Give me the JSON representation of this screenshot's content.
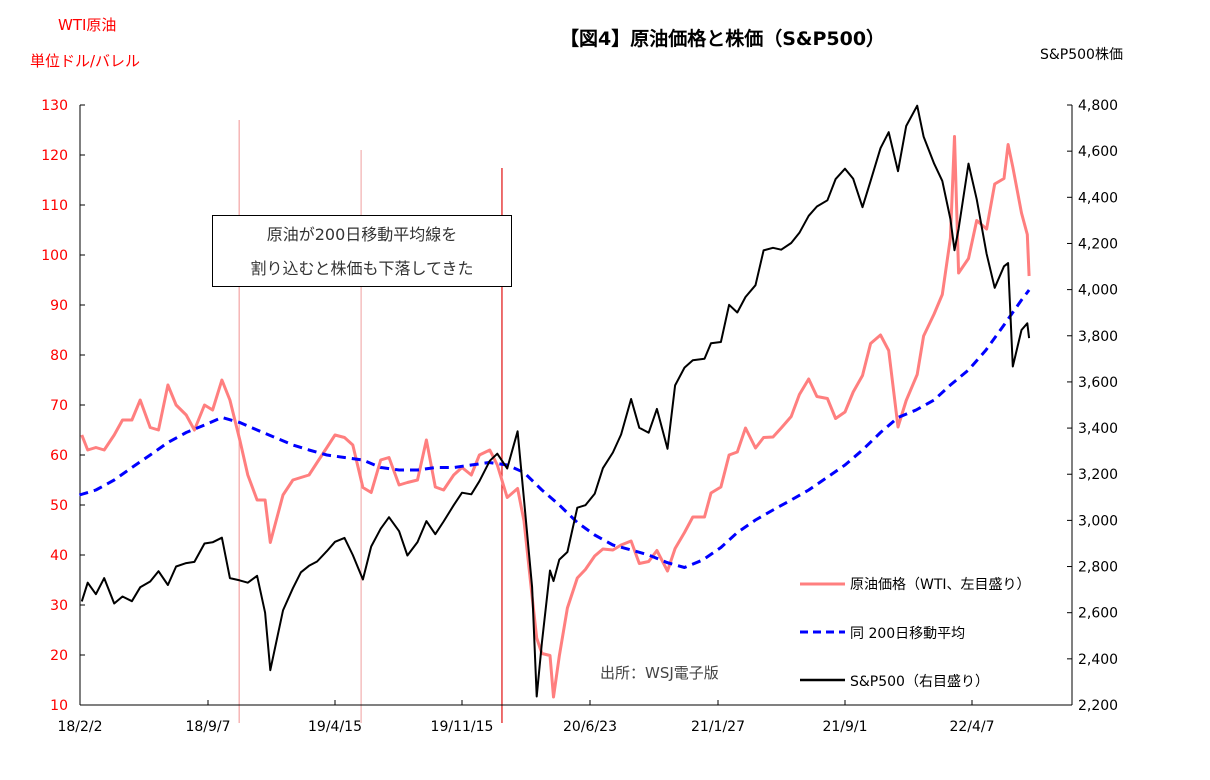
{
  "chart_data": {
    "type": "line",
    "title": "【図4】原油価格と株価（S&P500）",
    "y_left_label": [
      "WTI原油",
      "単位ドル/バレル"
    ],
    "y_right_label": "S&P500株価",
    "y_left_range": [
      10,
      130
    ],
    "y_right_range": [
      2200,
      4800
    ],
    "y_left_ticks": [
      "10",
      "20",
      "30",
      "40",
      "50",
      "60",
      "70",
      "80",
      "90",
      "100",
      "110",
      "120",
      "130"
    ],
    "y_right_ticks": [
      "2,200",
      "2,400",
      "2,600",
      "2,800",
      "3,000",
      "3,200",
      "3,400",
      "3,600",
      "3,800",
      "4,000",
      "4,200",
      "4,400",
      "4,600",
      "4,800"
    ],
    "x_ticks": [
      {
        "label": "18/2/2",
        "date": "2018-02-02"
      },
      {
        "label": "18/9/7",
        "date": "2018-09-07"
      },
      {
        "label": "19/4/15",
        "date": "2019-04-15"
      },
      {
        "label": "19/11/15",
        "date": "2019-11-15"
      },
      {
        "label": "20/6/23",
        "date": "2020-06-23"
      },
      {
        "label": "21/1/27",
        "date": "2021-01-27"
      },
      {
        "label": "21/9/1",
        "date": "2021-09-01"
      },
      {
        "label": "22/4/7",
        "date": "2022-04-07"
      }
    ],
    "grid": false,
    "legend_position": "bottom-right",
    "annotation": [
      "原油が200日移動平均線を",
      "割り込むと株価も下落してきた"
    ],
    "source": "出所：WSJ電子版",
    "vlines": [
      {
        "date": "2018-10-31",
        "color": "#f4a3a3"
      },
      {
        "date": "2019-05-29",
        "color": "#f2b0b0"
      },
      {
        "date": "2020-01-23",
        "color": "#e01010"
      }
    ],
    "x": [
      "2018-02-05",
      "2018-02-15",
      "2018-03-01",
      "2018-03-15",
      "2018-04-01",
      "2018-04-15",
      "2018-05-01",
      "2018-05-15",
      "2018-06-01",
      "2018-06-15",
      "2018-07-01",
      "2018-07-15",
      "2018-08-01",
      "2018-08-15",
      "2018-09-01",
      "2018-09-15",
      "2018-10-01",
      "2018-10-15",
      "2018-11-01",
      "2018-11-15",
      "2018-12-01",
      "2018-12-15",
      "2018-12-24",
      "2019-01-15",
      "2019-02-01",
      "2019-02-15",
      "2019-03-01",
      "2019-03-15",
      "2019-04-01",
      "2019-04-15",
      "2019-05-01",
      "2019-05-15",
      "2019-06-01",
      "2019-06-15",
      "2019-07-01",
      "2019-07-15",
      "2019-08-01",
      "2019-08-15",
      "2019-09-01",
      "2019-09-16",
      "2019-10-01",
      "2019-10-15",
      "2019-11-01",
      "2019-11-15",
      "2019-12-01",
      "2019-12-15",
      "2020-01-02",
      "2020-01-15",
      "2020-02-01",
      "2020-02-19",
      "2020-03-01",
      "2020-03-15",
      "2020-03-23",
      "2020-04-01",
      "2020-04-15",
      "2020-04-21",
      "2020-05-01",
      "2020-05-15",
      "2020-06-01",
      "2020-06-15",
      "2020-07-01",
      "2020-07-15",
      "2020-08-01",
      "2020-08-15",
      "2020-09-01",
      "2020-09-15",
      "2020-10-01",
      "2020-10-15",
      "2020-11-02",
      "2020-11-15",
      "2020-12-01",
      "2020-12-15",
      "2021-01-04",
      "2021-01-15",
      "2021-02-01",
      "2021-02-15",
      "2021-03-01",
      "2021-03-15",
      "2021-04-01",
      "2021-04-15",
      "2021-05-01",
      "2021-05-15",
      "2021-06-01",
      "2021-06-15",
      "2021-07-01",
      "2021-07-15",
      "2021-08-02",
      "2021-08-16",
      "2021-09-01",
      "2021-09-15",
      "2021-10-01",
      "2021-10-15",
      "2021-11-01",
      "2021-11-15",
      "2021-12-01",
      "2021-12-15",
      "2022-01-03",
      "2022-01-14",
      "2022-02-01",
      "2022-02-15",
      "2022-03-01",
      "2022-03-08",
      "2022-03-15",
      "2022-04-01",
      "2022-04-15",
      "2022-05-02",
      "2022-05-16",
      "2022-06-01",
      "2022-06-08",
      "2022-06-16",
      "2022-07-01",
      "2022-07-11",
      "2022-07-14"
    ],
    "series": [
      {
        "name": "原油価格（WTI、左目盛り）",
        "axis": "left",
        "color": "#ff7f7f",
        "style": "solid",
        "values": [
          64,
          61,
          61.5,
          61,
          64,
          67,
          67,
          71,
          65.5,
          65,
          74,
          70,
          68,
          65,
          70,
          69,
          75,
          71,
          63,
          56,
          51,
          51,
          42.5,
          52,
          55,
          55.5,
          56,
          58.5,
          61.5,
          64,
          63.5,
          62,
          53.5,
          52.5,
          59,
          59.5,
          54,
          54.5,
          55,
          63,
          53.6,
          53,
          56,
          57.5,
          56,
          60,
          61,
          58,
          51.5,
          53.3,
          46.8,
          31.7,
          23.4,
          20.3,
          19.9,
          11.6,
          19.8,
          29.4,
          35.4,
          37.1,
          39.8,
          41.2,
          41,
          42,
          42.8,
          38.3,
          38.7,
          40.9,
          36.8,
          41.3,
          44.5,
          47.6,
          47.6,
          52.4,
          53.6,
          60,
          60.6,
          65.4,
          61.4,
          63.5,
          63.6,
          65.4,
          67.7,
          72.1,
          75.2,
          71.7,
          71.3,
          67.3,
          68.6,
          72.6,
          75.9,
          82.3,
          84,
          80.9,
          65.6,
          70.9,
          76.1,
          83.8,
          88.2,
          92.1,
          103.4,
          123.7,
          96.4,
          99.3,
          106.9,
          105.2,
          114.2,
          115.3,
          122.1,
          117.6,
          108.4,
          104.1,
          95.8
        ]
      },
      {
        "name": "S&P500（右目盛り）",
        "axis": "right",
        "color": "#000000",
        "style": "solid",
        "values": [
          2649,
          2730,
          2680,
          2750,
          2640,
          2670,
          2650,
          2710,
          2735,
          2780,
          2720,
          2800,
          2815,
          2820,
          2900,
          2905,
          2925,
          2750,
          2740,
          2730,
          2760,
          2600,
          2351,
          2610,
          2706,
          2775,
          2803,
          2822,
          2867,
          2907,
          2924,
          2850,
          2744,
          2887,
          2964,
          3014,
          2953,
          2848,
          2906,
          2997,
          2940,
          2995,
          3066,
          3120,
          3113,
          3170,
          3258,
          3289,
          3225,
          3386,
          3090,
          2711,
          2237,
          2470,
          2783,
          2737,
          2830,
          2863,
          3055,
          3066,
          3115,
          3226,
          3294,
          3372,
          3526,
          3401,
          3380,
          3483,
          3310,
          3585,
          3662,
          3694,
          3700,
          3768,
          3773,
          3934,
          3901,
          3968,
          4019,
          4170,
          4181,
          4173,
          4202,
          4246,
          4320,
          4360,
          4387,
          4479,
          4524,
          4480,
          4357,
          4471,
          4613,
          4682,
          4513,
          4709,
          4797,
          4663,
          4546,
          4471,
          4306,
          4171,
          4263,
          4546,
          4392,
          4155,
          4008,
          4101,
          4115,
          3667,
          3825,
          3854,
          3790
        ]
      }
    ],
    "moving_average": {
      "name": "同 200日移動平均",
      "axis": "left",
      "color": "#0000ff",
      "style": "dashed",
      "x": [
        "2018-02-01",
        "2018-03-01",
        "2018-04-01",
        "2018-05-01",
        "2018-06-01",
        "2018-07-01",
        "2018-08-01",
        "2018-09-01",
        "2018-10-01",
        "2018-11-01",
        "2018-12-01",
        "2019-01-01",
        "2019-02-01",
        "2019-03-01",
        "2019-04-01",
        "2019-05-01",
        "2019-06-01",
        "2019-07-01",
        "2019-08-01",
        "2019-09-01",
        "2019-10-01",
        "2019-11-01",
        "2019-12-01",
        "2020-01-01",
        "2020-02-01",
        "2020-03-01",
        "2020-04-01",
        "2020-05-01",
        "2020-06-01",
        "2020-07-01",
        "2020-08-01",
        "2020-09-01",
        "2020-10-01",
        "2020-11-01",
        "2020-12-01",
        "2021-01-01",
        "2021-02-01",
        "2021-03-01",
        "2021-04-01",
        "2021-05-01",
        "2021-06-01",
        "2021-07-01",
        "2021-08-01",
        "2021-09-01",
        "2021-10-01",
        "2021-11-01",
        "2021-12-01",
        "2022-01-01",
        "2022-02-01",
        "2022-03-01",
        "2022-04-01",
        "2022-05-01",
        "2022-06-01",
        "2022-07-01",
        "2022-07-14"
      ],
      "values": [
        52,
        53,
        55,
        57.5,
        60,
        62.5,
        64.5,
        66,
        67.5,
        66.5,
        65,
        63.5,
        62,
        61,
        60,
        59.5,
        59,
        57.5,
        57,
        57,
        57.5,
        57.5,
        58,
        58.5,
        58,
        56.5,
        53,
        50,
        46.5,
        44,
        42,
        41,
        40,
        38.5,
        37.5,
        39,
        41.5,
        44.5,
        47,
        49,
        51,
        53,
        55.5,
        58,
        61,
        64.5,
        67.5,
        69,
        71,
        74,
        77,
        81,
        86,
        91,
        93
      ]
    }
  }
}
